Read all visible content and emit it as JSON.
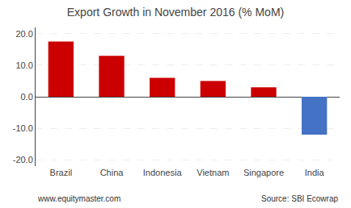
{
  "chart_data": {
    "type": "bar",
    "title": "Export Growth in November 2016 (% MoM)",
    "categories": [
      "Brazil",
      "China",
      "Indonesia",
      "Vietnam",
      "Singapore",
      "India"
    ],
    "values": [
      17.5,
      13.0,
      6.0,
      5.0,
      3.0,
      -12.0
    ],
    "colors": [
      "#cc0000",
      "#cc0000",
      "#cc0000",
      "#cc0000",
      "#cc0000",
      "#4472c4"
    ],
    "ylim": [
      -22,
      22
    ],
    "yticks": [
      {
        "value": -20,
        "label": "-20.0"
      },
      {
        "value": -10,
        "label": "-10.0"
      },
      {
        "value": 0,
        "label": "0.0"
      },
      {
        "value": 10,
        "label": "10.0"
      },
      {
        "value": 20,
        "label": "20.0"
      }
    ],
    "grid": true,
    "annotations": [
      "www.equitymaster.com",
      "Source: SBI Ecowrap"
    ]
  }
}
